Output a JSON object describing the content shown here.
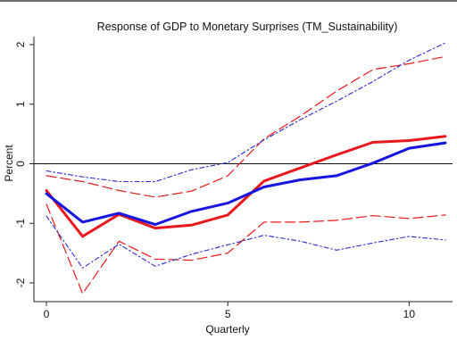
{
  "chart_data": {
    "type": "line",
    "title": "Response of GDP to Monetary Surprises (TM_Sustainability)",
    "xlabel": "Quarterly",
    "ylabel": "Percent",
    "xlim": [
      0,
      11
    ],
    "ylim": [
      -2.2,
      2.15
    ],
    "xticks": [
      0,
      5,
      10
    ],
    "yticks": [
      -2,
      -1,
      0,
      1,
      2
    ],
    "x": [
      0,
      1,
      2,
      3,
      4,
      5,
      6,
      7,
      8,
      9,
      10,
      11
    ],
    "zero_line": 0,
    "grid": false,
    "legend": "none",
    "series": [
      {
        "key": "red_point",
        "color": "#e8181c",
        "style": "solid",
        "width": 3,
        "values": [
          -0.45,
          -1.22,
          -0.85,
          -1.08,
          -1.03,
          -0.86,
          -0.29,
          -0.07,
          0.15,
          0.36,
          0.39,
          0.46
        ]
      },
      {
        "key": "blue_point",
        "color": "#1616e0",
        "style": "solid",
        "width": 3,
        "values": [
          -0.5,
          -0.98,
          -0.83,
          -1.02,
          -0.8,
          -0.66,
          -0.39,
          -0.27,
          -0.2,
          0.01,
          0.26,
          0.35
        ]
      },
      {
        "key": "red_upper",
        "color": "#e8181c",
        "style": "dashed",
        "width": 1.2,
        "values": [
          -0.2,
          -0.3,
          -0.45,
          -0.56,
          -0.46,
          -0.2,
          0.42,
          0.8,
          1.22,
          1.58,
          1.68,
          1.8
        ]
      },
      {
        "key": "red_lower",
        "color": "#e8181c",
        "style": "dashed",
        "width": 1.2,
        "values": [
          -0.68,
          -2.18,
          -1.3,
          -1.6,
          -1.62,
          -1.5,
          -0.98,
          -0.98,
          -0.95,
          -0.87,
          -0.92,
          -0.86
        ]
      },
      {
        "key": "blue_upper",
        "color": "#2a2ad0",
        "style": "dashdot",
        "width": 1.1,
        "values": [
          -0.12,
          -0.22,
          -0.3,
          -0.3,
          -0.1,
          0.02,
          0.4,
          0.74,
          1.05,
          1.38,
          1.74,
          2.03
        ]
      },
      {
        "key": "blue_lower",
        "color": "#2a2ad0",
        "style": "dashdot",
        "width": 1.1,
        "values": [
          -0.88,
          -1.75,
          -1.35,
          -1.72,
          -1.52,
          -1.36,
          -1.2,
          -1.3,
          -1.45,
          -1.33,
          -1.22,
          -1.28
        ]
      }
    ]
  }
}
